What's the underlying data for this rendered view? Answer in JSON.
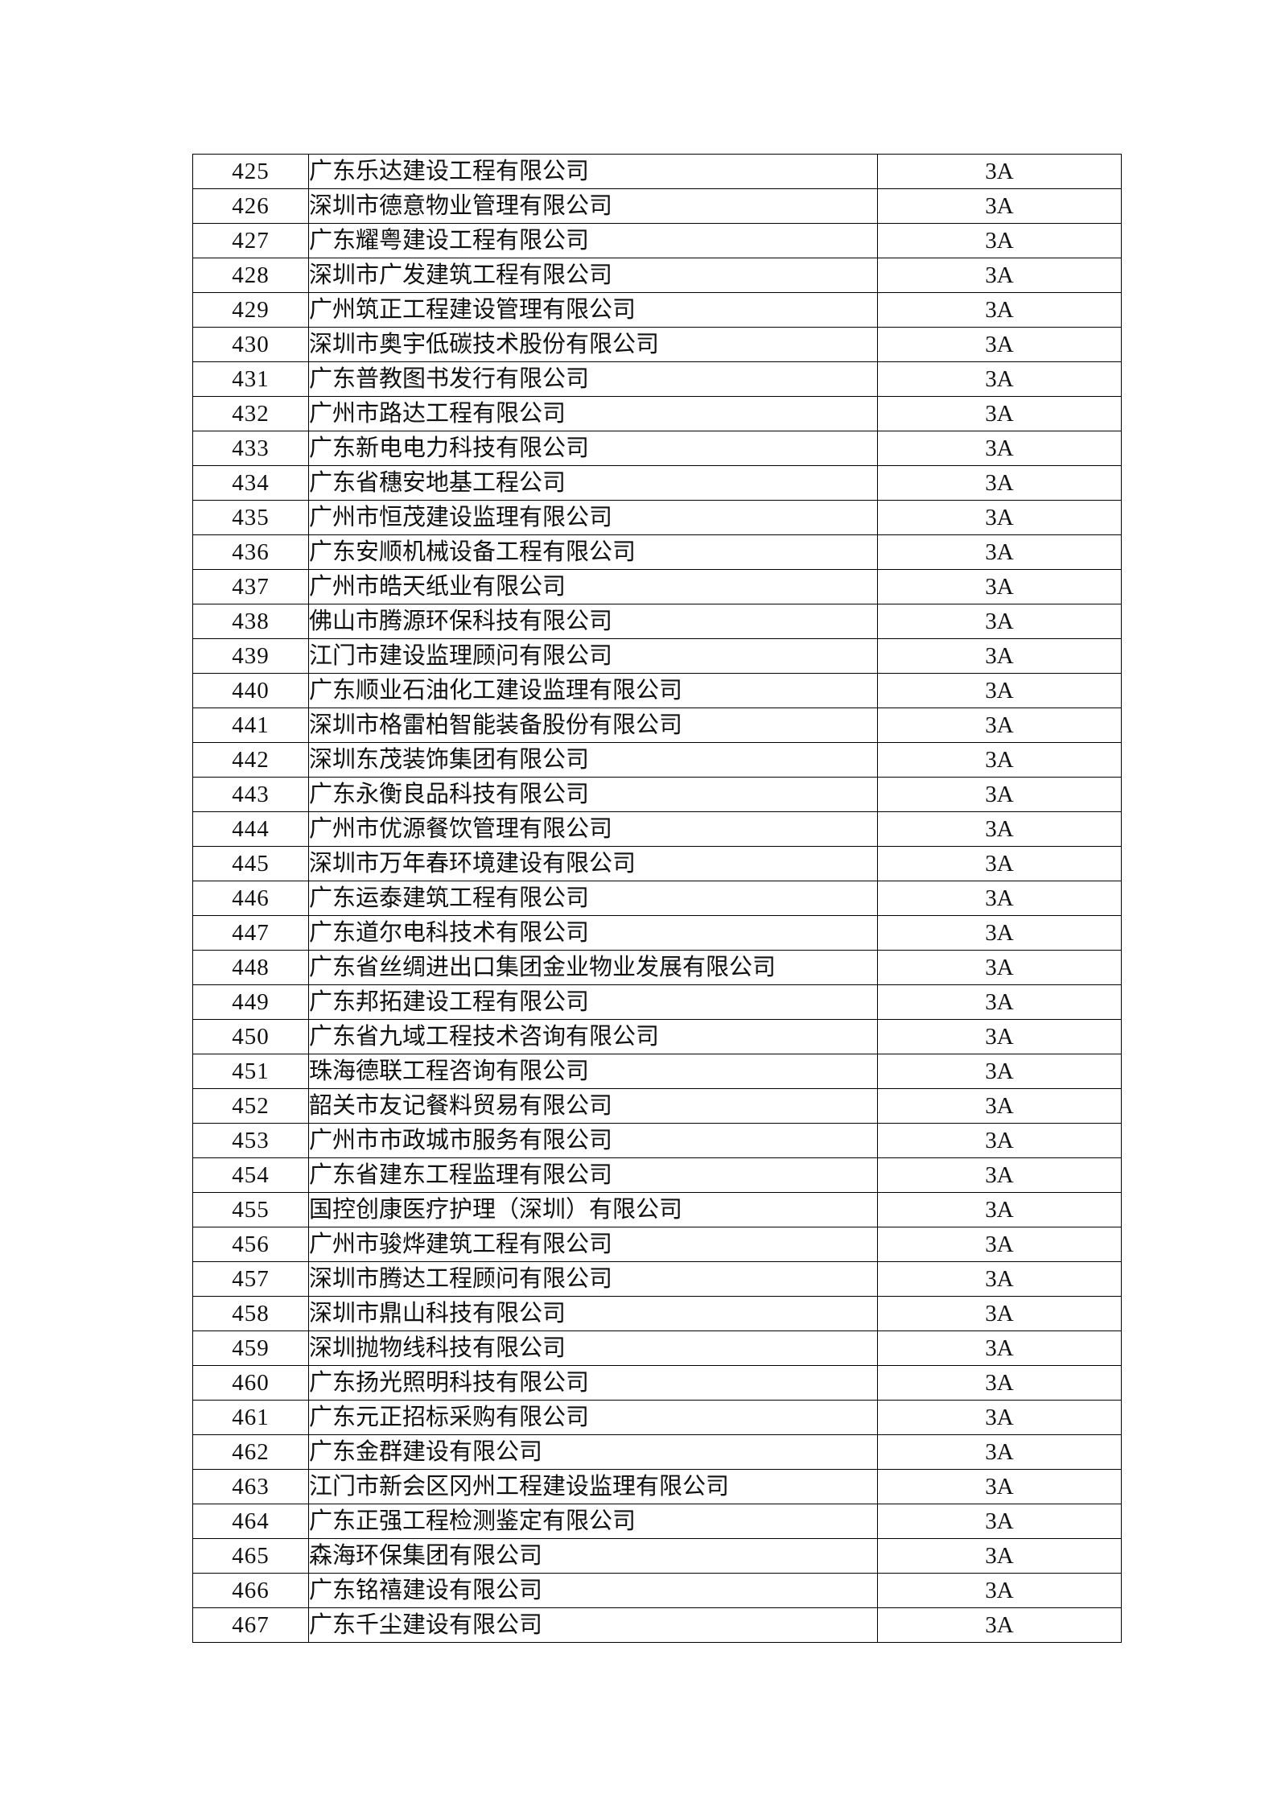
{
  "table": {
    "rows": [
      {
        "no": "425",
        "name": "广东乐达建设工程有限公司",
        "rating": "3A"
      },
      {
        "no": "426",
        "name": "深圳市德意物业管理有限公司",
        "rating": "3A"
      },
      {
        "no": "427",
        "name": "广东耀粤建设工程有限公司",
        "rating": "3A"
      },
      {
        "no": "428",
        "name": "深圳市广发建筑工程有限公司",
        "rating": "3A"
      },
      {
        "no": "429",
        "name": "广州筑正工程建设管理有限公司",
        "rating": "3A"
      },
      {
        "no": "430",
        "name": "深圳市奥宇低碳技术股份有限公司",
        "rating": "3A"
      },
      {
        "no": "431",
        "name": "广东普教图书发行有限公司",
        "rating": "3A"
      },
      {
        "no": "432",
        "name": "广州市路达工程有限公司",
        "rating": "3A"
      },
      {
        "no": "433",
        "name": "广东新电电力科技有限公司",
        "rating": "3A"
      },
      {
        "no": "434",
        "name": "广东省穗安地基工程公司",
        "rating": "3A"
      },
      {
        "no": "435",
        "name": "广州市恒茂建设监理有限公司",
        "rating": "3A"
      },
      {
        "no": "436",
        "name": "广东安顺机械设备工程有限公司",
        "rating": "3A"
      },
      {
        "no": "437",
        "name": "广州市皓天纸业有限公司",
        "rating": "3A"
      },
      {
        "no": "438",
        "name": "佛山市腾源环保科技有限公司",
        "rating": "3A"
      },
      {
        "no": "439",
        "name": "江门市建设监理顾问有限公司",
        "rating": "3A"
      },
      {
        "no": "440",
        "name": "广东顺业石油化工建设监理有限公司",
        "rating": "3A"
      },
      {
        "no": "441",
        "name": "深圳市格雷柏智能装备股份有限公司",
        "rating": "3A"
      },
      {
        "no": "442",
        "name": "深圳东茂装饰集团有限公司",
        "rating": "3A"
      },
      {
        "no": "443",
        "name": "广东永衡良品科技有限公司",
        "rating": "3A"
      },
      {
        "no": "444",
        "name": "广州市优源餐饮管理有限公司",
        "rating": "3A"
      },
      {
        "no": "445",
        "name": "深圳市万年春环境建设有限公司",
        "rating": "3A"
      },
      {
        "no": "446",
        "name": "广东运泰建筑工程有限公司",
        "rating": "3A"
      },
      {
        "no": "447",
        "name": "广东道尔电科技术有限公司",
        "rating": "3A"
      },
      {
        "no": "448",
        "name": "广东省丝绸进出口集团金业物业发展有限公司",
        "rating": "3A"
      },
      {
        "no": "449",
        "name": "广东邦拓建设工程有限公司",
        "rating": "3A"
      },
      {
        "no": "450",
        "name": "广东省九域工程技术咨询有限公司",
        "rating": "3A"
      },
      {
        "no": "451",
        "name": "珠海德联工程咨询有限公司",
        "rating": "3A"
      },
      {
        "no": "452",
        "name": "韶关市友记餐料贸易有限公司",
        "rating": "3A"
      },
      {
        "no": "453",
        "name": "广州市市政城市服务有限公司",
        "rating": "3A"
      },
      {
        "no": "454",
        "name": "广东省建东工程监理有限公司",
        "rating": "3A"
      },
      {
        "no": "455",
        "name": "国控创康医疗护理（深圳）有限公司",
        "rating": "3A"
      },
      {
        "no": "456",
        "name": "广州市骏烨建筑工程有限公司",
        "rating": "3A"
      },
      {
        "no": "457",
        "name": "深圳市腾达工程顾问有限公司",
        "rating": "3A"
      },
      {
        "no": "458",
        "name": "深圳市鼎山科技有限公司",
        "rating": "3A"
      },
      {
        "no": "459",
        "name": "深圳抛物线科技有限公司",
        "rating": "3A"
      },
      {
        "no": "460",
        "name": "广东扬光照明科技有限公司",
        "rating": "3A"
      },
      {
        "no": "461",
        "name": "广东元正招标采购有限公司",
        "rating": "3A"
      },
      {
        "no": "462",
        "name": "广东金群建设有限公司",
        "rating": "3A"
      },
      {
        "no": "463",
        "name": "江门市新会区冈州工程建设监理有限公司",
        "rating": "3A"
      },
      {
        "no": "464",
        "name": "广东正强工程检测鉴定有限公司",
        "rating": "3A"
      },
      {
        "no": "465",
        "name": "森海环保集团有限公司",
        "rating": "3A"
      },
      {
        "no": "466",
        "name": "广东铭禧建设有限公司",
        "rating": "3A"
      },
      {
        "no": "467",
        "name": "广东千尘建设有限公司",
        "rating": "3A"
      }
    ]
  }
}
